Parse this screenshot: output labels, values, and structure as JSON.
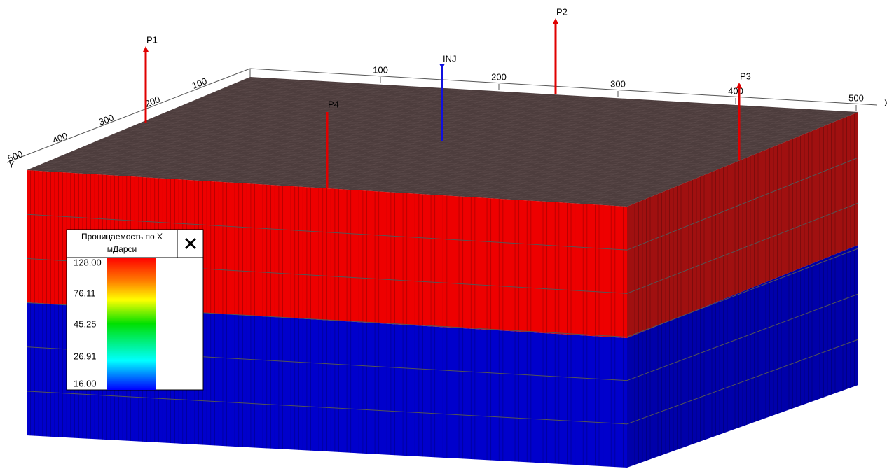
{
  "wells": [
    {
      "name": "P1"
    },
    {
      "name": "P2"
    },
    {
      "name": "INJ"
    },
    {
      "name": "P3"
    },
    {
      "name": "P4"
    }
  ],
  "x_axis": {
    "label": "X",
    "ticks": [
      "100",
      "200",
      "300",
      "400",
      "500"
    ]
  },
  "y_axis": {
    "label": "Y",
    "ticks": [
      "100",
      "200",
      "300",
      "400",
      "500"
    ]
  },
  "legend": {
    "title": "Проницаемость по X",
    "unit": "мДарси",
    "labels": [
      "128.00",
      "76.11",
      "45.25",
      "26.91",
      "16.00"
    ]
  }
}
